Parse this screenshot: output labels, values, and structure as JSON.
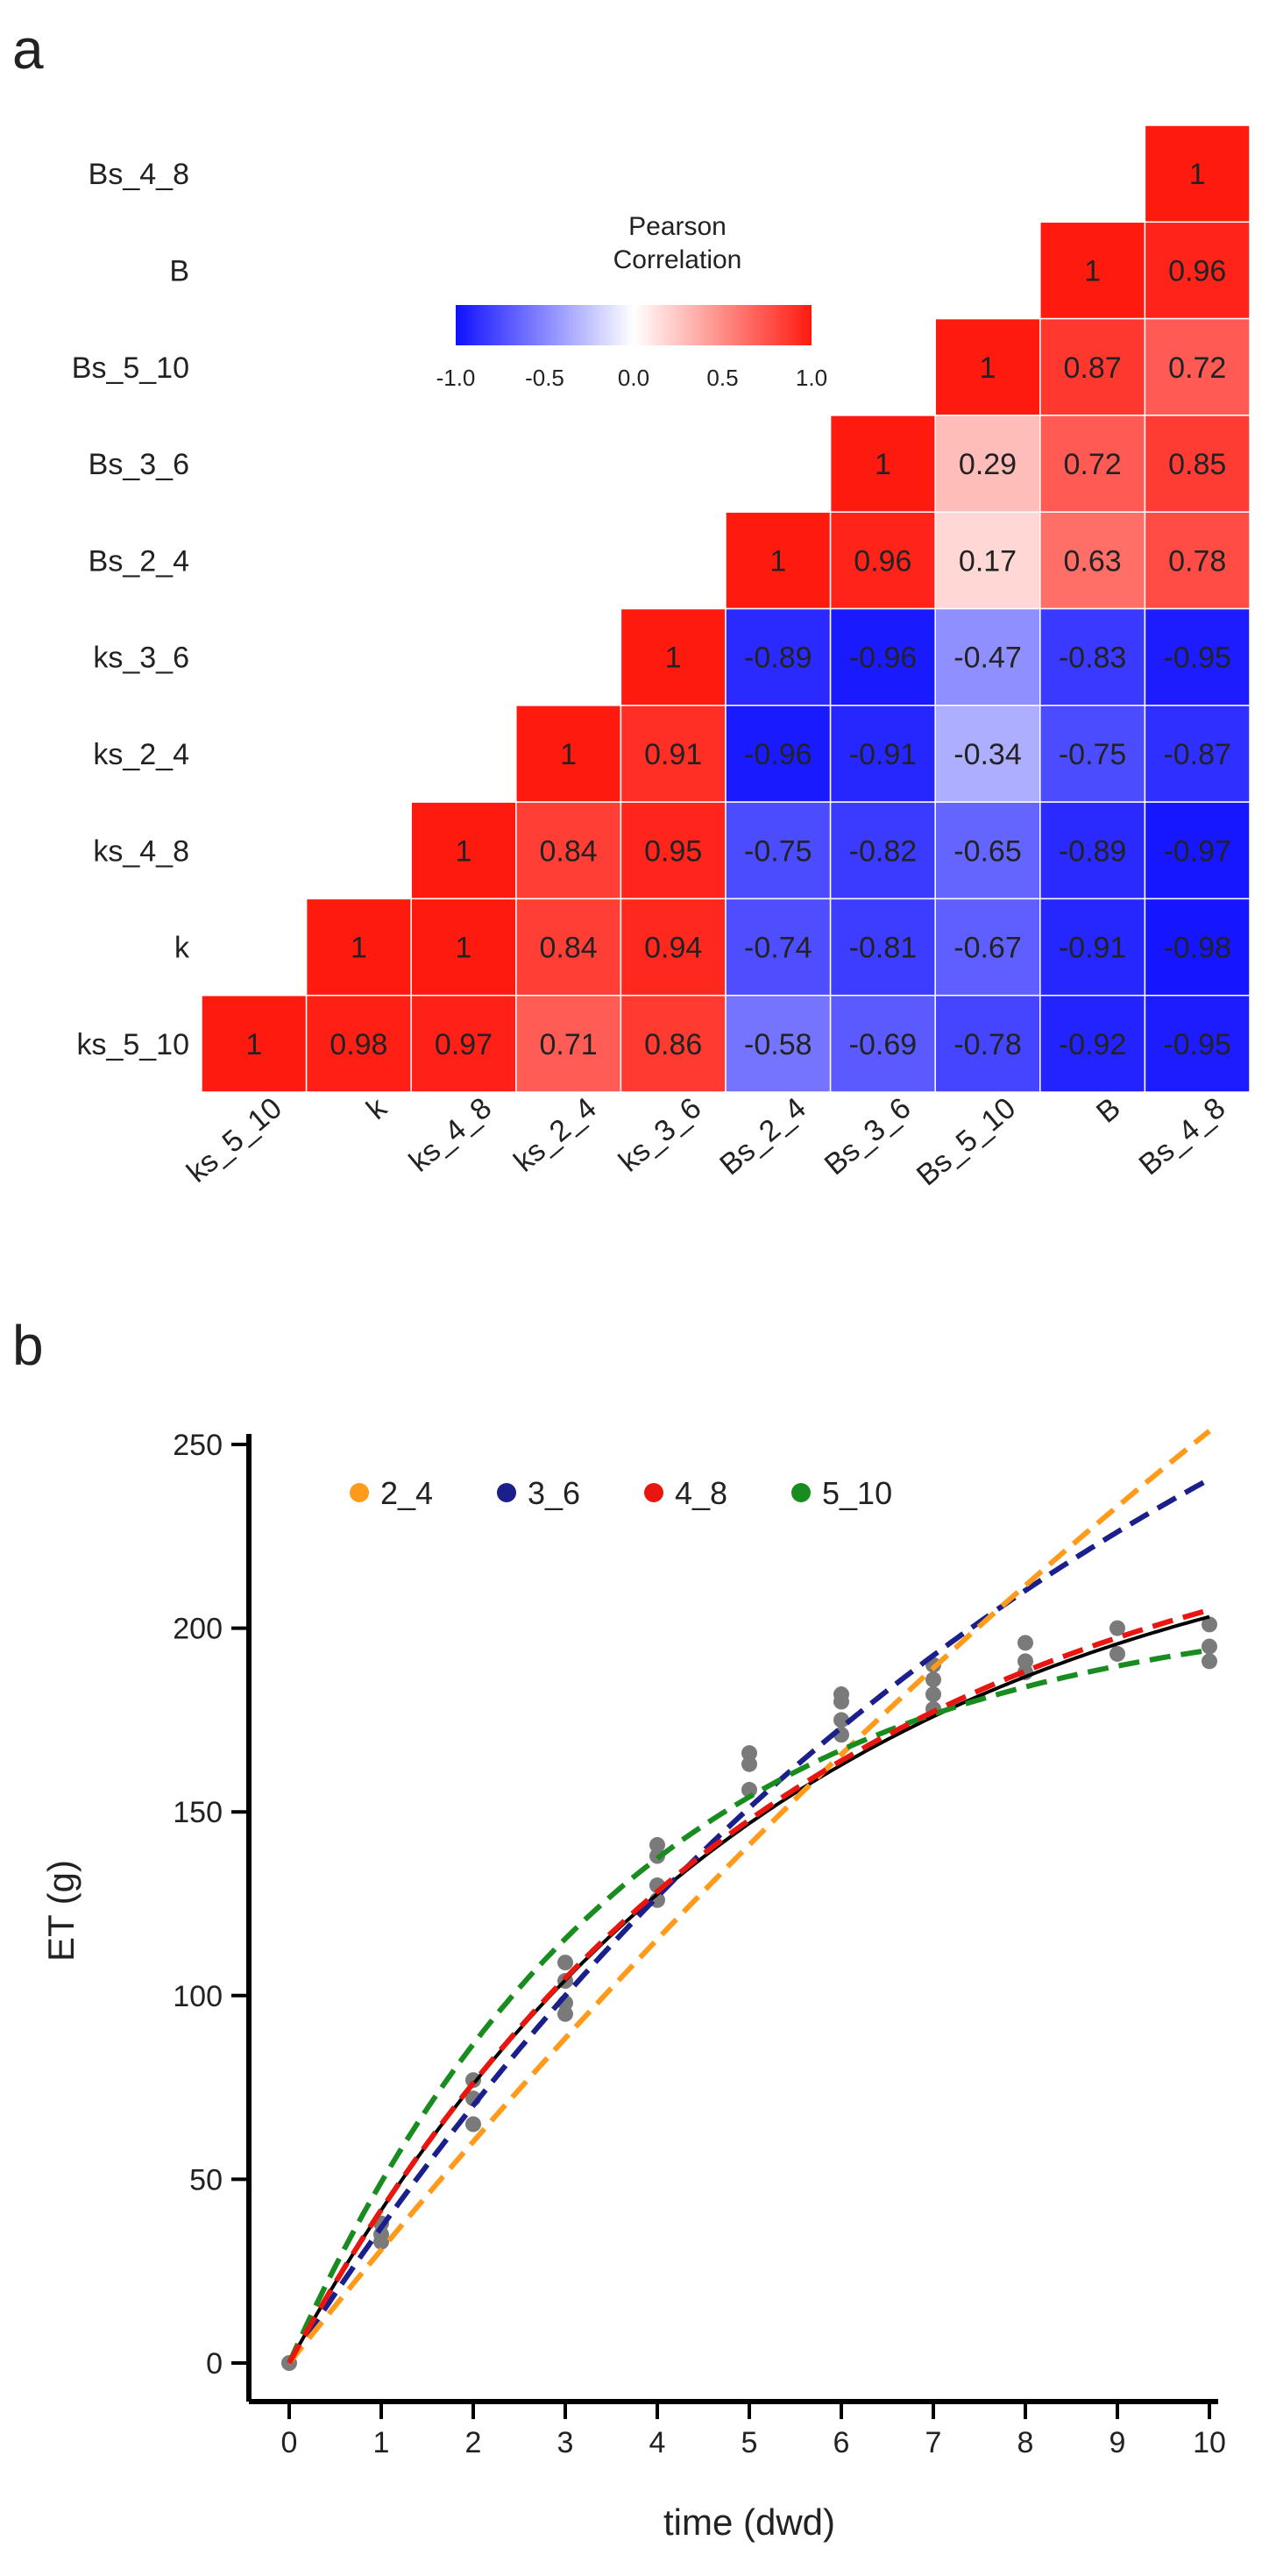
{
  "chart_data": [
    {
      "panel": "a",
      "type": "heatmap",
      "row_labels_top_to_bottom": [
        "Bs_4_8",
        "B",
        "Bs_5_10",
        "Bs_3_6",
        "Bs_2_4",
        "ks_3_6",
        "ks_2_4",
        "ks_4_8",
        "k",
        "ks_5_10"
      ],
      "column_labels": [
        "ks_5_10",
        "k",
        "ks_4_8",
        "ks_2_4",
        "ks_3_6",
        "Bs_2_4",
        "Bs_3_6",
        "Bs_5_10",
        "B",
        "Bs_4_8"
      ],
      "matrix_rows_top_to_bottom": [
        [
          null,
          null,
          null,
          null,
          null,
          null,
          null,
          null,
          null,
          1
        ],
        [
          null,
          null,
          null,
          null,
          null,
          null,
          null,
          null,
          1,
          0.96
        ],
        [
          null,
          null,
          null,
          null,
          null,
          null,
          null,
          1,
          0.87,
          0.72
        ],
        [
          null,
          null,
          null,
          null,
          null,
          null,
          1,
          0.29,
          0.72,
          0.85
        ],
        [
          null,
          null,
          null,
          null,
          null,
          1,
          0.96,
          0.17,
          0.63,
          0.78
        ],
        [
          null,
          null,
          null,
          null,
          1,
          -0.89,
          -0.96,
          -0.47,
          -0.83,
          -0.95
        ],
        [
          null,
          null,
          null,
          1,
          0.91,
          -0.96,
          -0.91,
          -0.34,
          -0.75,
          -0.87
        ],
        [
          null,
          null,
          1,
          0.84,
          0.95,
          -0.75,
          -0.82,
          -0.65,
          -0.89,
          -0.97
        ],
        [
          null,
          1,
          1,
          0.84,
          0.94,
          -0.74,
          -0.81,
          -0.67,
          -0.91,
          -0.98
        ],
        [
          1,
          0.98,
          0.97,
          0.71,
          0.86,
          -0.58,
          -0.69,
          -0.78,
          -0.92,
          -0.95
        ]
      ],
      "legend": {
        "title_line1": "Pearson",
        "title_line2": "Correlation",
        "ticks": [
          "-1.0",
          "-0.5",
          "0.0",
          "0.5",
          "1.0"
        ],
        "range": [
          -1,
          1
        ],
        "colors": {
          "low": "#1010ff",
          "mid": "#ffffff",
          "high": "#ff1a10"
        }
      }
    },
    {
      "panel": "b",
      "type": "line",
      "xlabel": "time (dwd)",
      "ylabel": "ET (g)",
      "xlim": [
        0,
        10
      ],
      "ylim": [
        0,
        250
      ],
      "x_ticks": [
        0,
        1,
        2,
        3,
        4,
        5,
        6,
        7,
        8,
        9,
        10
      ],
      "y_ticks": [
        0,
        50,
        100,
        150,
        200,
        250
      ],
      "series": [
        {
          "name": "2_4",
          "color": "#ff9a1a",
          "dashed": true,
          "A": 700,
          "k": 0.045
        },
        {
          "name": "3_6",
          "color": "#1a1f8c",
          "dashed": true,
          "A": 370,
          "k": 0.105
        },
        {
          "name": "4_8",
          "color": "#e8160e",
          "dashed": true,
          "A": 241,
          "k": 0.19
        },
        {
          "name": "5_10",
          "color": "#198c1f",
          "dashed": true,
          "A": 208,
          "k": 0.27
        },
        {
          "name": "fit",
          "color": "#000000",
          "dashed": false,
          "A": 238,
          "k": 0.192,
          "in_legend": false
        }
      ],
      "observations": {
        "color": "#7a7a7a",
        "points": [
          [
            0,
            0
          ],
          [
            1,
            33
          ],
          [
            1,
            35
          ],
          [
            1,
            38
          ],
          [
            2,
            65
          ],
          [
            2,
            72
          ],
          [
            2,
            77
          ],
          [
            3,
            95
          ],
          [
            3,
            98
          ],
          [
            3,
            104
          ],
          [
            3,
            109
          ],
          [
            4,
            126
          ],
          [
            4,
            130
          ],
          [
            4,
            138
          ],
          [
            4,
            141
          ],
          [
            5,
            156
          ],
          [
            5,
            163
          ],
          [
            5,
            166
          ],
          [
            6,
            171
          ],
          [
            6,
            175
          ],
          [
            6,
            180
          ],
          [
            6,
            182
          ],
          [
            7,
            178
          ],
          [
            7,
            182
          ],
          [
            7,
            186
          ],
          [
            7,
            190
          ],
          [
            8,
            188
          ],
          [
            8,
            191
          ],
          [
            8,
            196
          ],
          [
            9,
            193
          ],
          [
            9,
            200
          ],
          [
            10,
            191
          ],
          [
            10,
            195
          ],
          [
            10,
            201
          ]
        ]
      }
    }
  ],
  "panel_labels": {
    "a": "a",
    "b": "b"
  }
}
